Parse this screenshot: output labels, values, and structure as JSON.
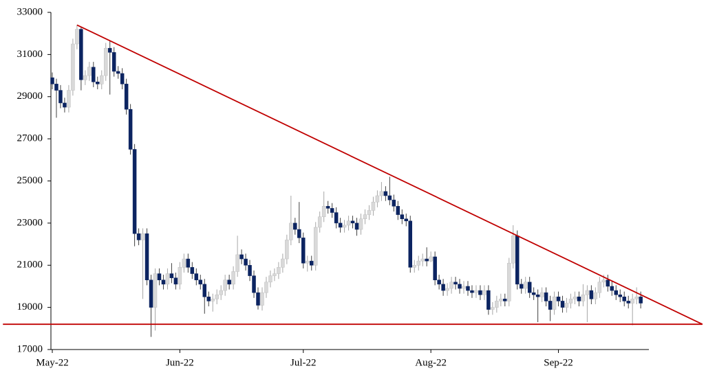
{
  "chart_data": {
    "type": "candlestick",
    "categories": [
      "May-22",
      null,
      null,
      null,
      null,
      null,
      null,
      null,
      null,
      null,
      null,
      null,
      null,
      null,
      null,
      null,
      null,
      null,
      null,
      null,
      null,
      null,
      null,
      null,
      null,
      null,
      null,
      null,
      null,
      null,
      null,
      "Jun-22",
      null,
      null,
      null,
      null,
      null,
      null,
      null,
      null,
      null,
      null,
      null,
      null,
      null,
      null,
      null,
      null,
      null,
      null,
      null,
      null,
      null,
      null,
      null,
      null,
      null,
      null,
      null,
      null,
      null,
      "Jul-22",
      null,
      null,
      null,
      null,
      null,
      null,
      null,
      null,
      null,
      null,
      null,
      null,
      null,
      null,
      null,
      null,
      null,
      null,
      null,
      null,
      null,
      null,
      null,
      null,
      null,
      null,
      null,
      null,
      null,
      null,
      "Aug-22",
      null,
      null,
      null,
      null,
      null,
      null,
      null,
      null,
      null,
      null,
      null,
      null,
      null,
      null,
      null,
      null,
      null,
      null,
      null,
      null,
      null,
      null,
      null,
      null,
      null,
      null,
      null,
      null,
      null,
      null,
      "Sep-22",
      null,
      null,
      null,
      null,
      null,
      null,
      null,
      null,
      null,
      null,
      null,
      null,
      null,
      null,
      null,
      null,
      null,
      null,
      null,
      null
    ],
    "open": [
      29900,
      29600,
      29300,
      28700,
      28500,
      29300,
      31500,
      32200,
      29800,
      30000,
      30400,
      29700,
      29600,
      30000,
      31300,
      31100,
      30200,
      30100,
      29600,
      28400,
      26500,
      22500,
      22200,
      22500,
      20300,
      19000,
      20600,
      20300,
      20100,
      20600,
      20400,
      20100,
      20900,
      21300,
      20900,
      20600,
      20300,
      20100,
      19500,
      19300,
      19400,
      19600,
      19800,
      20300,
      20100,
      20700,
      21500,
      21300,
      21000,
      20500,
      19700,
      19100,
      19700,
      20200,
      20500,
      20600,
      20900,
      21300,
      22200,
      23000,
      22700,
      22300,
      21100,
      21200,
      21000,
      22800,
      23300,
      23800,
      23700,
      23500,
      23000,
      22800,
      22900,
      23100,
      23000,
      22700,
      23200,
      23400,
      23600,
      24000,
      24300,
      24500,
      24300,
      24100,
      23800,
      23400,
      23200,
      23100,
      20900,
      21000,
      21200,
      21300,
      21200,
      21400,
      20300,
      20100,
      19800,
      19900,
      20200,
      20100,
      19900,
      20000,
      19800,
      19700,
      19800,
      19600,
      19800,
      18900,
      19000,
      19300,
      19400,
      19300,
      21100,
      22400,
      20100,
      19900,
      20200,
      19700,
      19600,
      19500,
      19700,
      19300,
      18900,
      19500,
      19300,
      19000,
      19200,
      19400,
      19500,
      19300,
      19600,
      19800,
      19400,
      19700,
      20200,
      20300,
      20000,
      19800,
      19600,
      19500,
      19300,
      19200,
      19400,
      19500
    ],
    "high": [
      30150,
      29850,
      29550,
      28950,
      29550,
      31750,
      32400,
      32300,
      30250,
      30650,
      30650,
      29950,
      30250,
      31550,
      31650,
      31350,
      30450,
      30350,
      29850,
      28650,
      26750,
      22750,
      22750,
      22750,
      20550,
      20850,
      20850,
      20550,
      20850,
      21100,
      20650,
      21150,
      21550,
      21550,
      21150,
      20850,
      20550,
      20350,
      19750,
      19650,
      19850,
      20050,
      20550,
      20550,
      20950,
      22400,
      21750,
      21550,
      21250,
      20750,
      19950,
      19950,
      20450,
      20750,
      20850,
      21150,
      21550,
      22450,
      24300,
      23250,
      24000,
      22550,
      21450,
      21450,
      23050,
      23550,
      24500,
      24050,
      23950,
      23750,
      23250,
      23150,
      23350,
      23350,
      23250,
      23450,
      23650,
      23850,
      24250,
      24550,
      24950,
      24750,
      25200,
      24350,
      24050,
      23650,
      23450,
      23350,
      21250,
      21450,
      21550,
      21850,
      21650,
      21650,
      20550,
      20350,
      20150,
      20450,
      20450,
      20350,
      20250,
      20250,
      20050,
      20050,
      20050,
      20050,
      20050,
      19250,
      19550,
      19650,
      19650,
      21350,
      22900,
      22650,
      20350,
      20450,
      20450,
      19950,
      19850,
      19950,
      19950,
      19550,
      19750,
      19750,
      19550,
      19450,
      19650,
      19750,
      19750,
      20100,
      20050,
      20050,
      19950,
      20450,
      20550,
      20550,
      20250,
      20050,
      19850,
      19750,
      19550,
      19650,
      19950,
      19750
    ],
    "low": [
      29350,
      28000,
      28450,
      28250,
      28250,
      29050,
      31250,
      29300,
      29550,
      29750,
      29450,
      29350,
      29350,
      29750,
      29100,
      29950,
      29850,
      29350,
      28150,
      26250,
      21900,
      21950,
      19400,
      20050,
      17600,
      17900,
      20050,
      19850,
      19850,
      20150,
      19850,
      19850,
      20650,
      20650,
      20350,
      20050,
      19850,
      18700,
      19050,
      18800,
      19150,
      19350,
      19550,
      19850,
      19850,
      20450,
      21050,
      20750,
      20250,
      19450,
      18900,
      18850,
      19450,
      19950,
      20250,
      20350,
      20650,
      21050,
      21950,
      22450,
      22050,
      20850,
      20700,
      20750,
      20750,
      22550,
      23050,
      23450,
      23250,
      22750,
      22550,
      22550,
      22650,
      22750,
      22400,
      22450,
      22950,
      23150,
      23350,
      23750,
      24050,
      24050,
      23850,
      23550,
      23150,
      22950,
      22850,
      20650,
      20650,
      20750,
      20950,
      20950,
      21150,
      20050,
      19850,
      19550,
      19550,
      19650,
      19850,
      19650,
      19650,
      19550,
      19450,
      19450,
      19350,
      19350,
      18650,
      18650,
      18750,
      19050,
      19050,
      19050,
      20850,
      19850,
      19650,
      19650,
      19450,
      19350,
      18300,
      19250,
      19050,
      18350,
      18650,
      19050,
      18750,
      18750,
      18950,
      19150,
      19050,
      19050,
      18300,
      19150,
      19150,
      19450,
      19950,
      19750,
      19550,
      19350,
      19250,
      19050,
      18950,
      18150,
      19150,
      18950
    ],
    "close": [
      29600,
      29300,
      28700,
      28500,
      29300,
      31500,
      32200,
      29800,
      30000,
      30400,
      29700,
      29600,
      30000,
      31300,
      31100,
      30200,
      30100,
      29600,
      28400,
      26500,
      22500,
      22200,
      22500,
      20300,
      19000,
      20600,
      20300,
      20100,
      20600,
      20400,
      20100,
      20900,
      21300,
      20900,
      20600,
      20300,
      20100,
      19500,
      19300,
      19400,
      19600,
      19800,
      20300,
      20100,
      20700,
      21500,
      21300,
      21000,
      20500,
      19700,
      19100,
      19700,
      20200,
      20500,
      20600,
      20900,
      21300,
      22200,
      23000,
      22700,
      22300,
      21100,
      21200,
      21000,
      22800,
      23300,
      23800,
      23700,
      23500,
      23000,
      22800,
      22900,
      23100,
      23000,
      22700,
      23200,
      23400,
      23600,
      24000,
      24300,
      24500,
      24300,
      24100,
      23800,
      23400,
      23200,
      23100,
      20900,
      21000,
      21200,
      21300,
      21200,
      21400,
      20300,
      20100,
      19800,
      19900,
      20200,
      20100,
      19900,
      20000,
      19800,
      19700,
      19800,
      19600,
      19800,
      18900,
      19000,
      19300,
      19400,
      19300,
      21100,
      22400,
      20100,
      19900,
      20200,
      19700,
      19600,
      19500,
      19700,
      19300,
      18900,
      19500,
      19300,
      19000,
      19200,
      19400,
      19500,
      19300,
      19600,
      19800,
      19400,
      19700,
      20200,
      20300,
      20000,
      19800,
      19600,
      19500,
      19300,
      19200,
      19400,
      19500,
      19200
    ],
    "up_color": "#d9d9d9",
    "down_color": "#0c2461",
    "ylim": [
      17000,
      33000
    ],
    "yticks": [
      17000,
      19000,
      21000,
      23000,
      25000,
      27000,
      29000,
      31000,
      33000
    ],
    "trendlines": [
      {
        "color": "#c00000",
        "start": [
          6,
          32400
        ],
        "end": [
          158,
          18200
        ]
      },
      {
        "color": "#c00000",
        "start": [
          -12,
          18200
        ],
        "end": [
          158,
          18200
        ]
      }
    ]
  }
}
